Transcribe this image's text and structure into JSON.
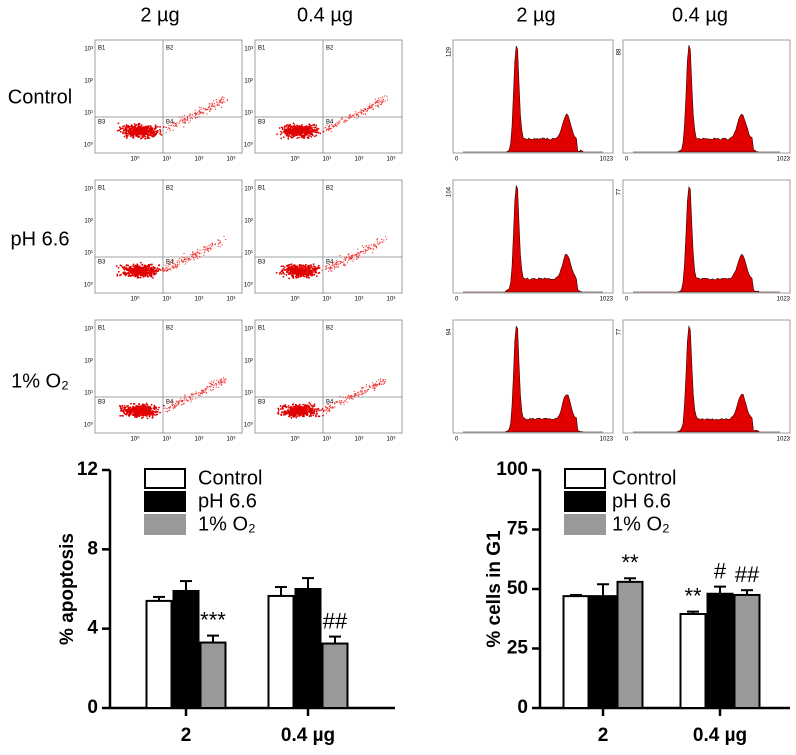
{
  "figure": {
    "column_headers": [
      "2 µg",
      "0.4 µg",
      "2 µg",
      "0.4 µg"
    ],
    "row_labels": [
      "Control",
      "pH 6.6",
      "1% O₂"
    ],
    "quadrant_labels": [
      "B1",
      "B2",
      "B3",
      "B4"
    ],
    "scatter_ticks": [
      "10⁰",
      "10¹",
      "10²",
      "10³"
    ],
    "histogram_max_labels": [
      [
        129,
        88
      ],
      [
        104,
        77
      ],
      [
        94,
        77
      ]
    ],
    "histogram_x_labels": [
      0,
      1023
    ]
  },
  "chart_data": [
    {
      "type": "bar",
      "y_label": "% apoptosis",
      "categories": [
        "2",
        "0.4 µg"
      ],
      "ylim": [
        0,
        12
      ],
      "yticks": [
        0,
        4,
        8,
        12
      ],
      "series": [
        {
          "name": "Control",
          "color": "#ffffff",
          "values": [
            5.4,
            5.65
          ],
          "error": [
            0.2,
            0.45
          ],
          "annotations": [
            null,
            null
          ]
        },
        {
          "name": "pH 6.6",
          "color": "#000000",
          "values": [
            5.9,
            6.0
          ],
          "error": [
            0.5,
            0.55
          ],
          "annotations": [
            null,
            null
          ]
        },
        {
          "name": "1% O₂",
          "color": "#999999",
          "values": [
            3.3,
            3.25
          ],
          "error": [
            0.35,
            0.35
          ],
          "annotations": [
            "***",
            "##"
          ]
        }
      ]
    },
    {
      "type": "bar",
      "y_label": "% cells in G1",
      "categories": [
        "2",
        "0.4 µg"
      ],
      "ylim": [
        0,
        100
      ],
      "yticks": [
        0,
        25,
        50,
        75,
        100
      ],
      "series": [
        {
          "name": "Control",
          "color": "#ffffff",
          "values": [
            47,
            39.5
          ],
          "error": [
            0.5,
            1
          ],
          "annotations": [
            null,
            "**"
          ]
        },
        {
          "name": "pH 6.6",
          "color": "#000000",
          "values": [
            47,
            48
          ],
          "error": [
            5,
            3
          ],
          "annotations": [
            null,
            "#"
          ]
        },
        {
          "name": "1% O₂",
          "color": "#999999",
          "values": [
            53,
            47.5
          ],
          "error": [
            1.5,
            2
          ],
          "annotations": [
            "**",
            "##"
          ]
        }
      ]
    }
  ]
}
